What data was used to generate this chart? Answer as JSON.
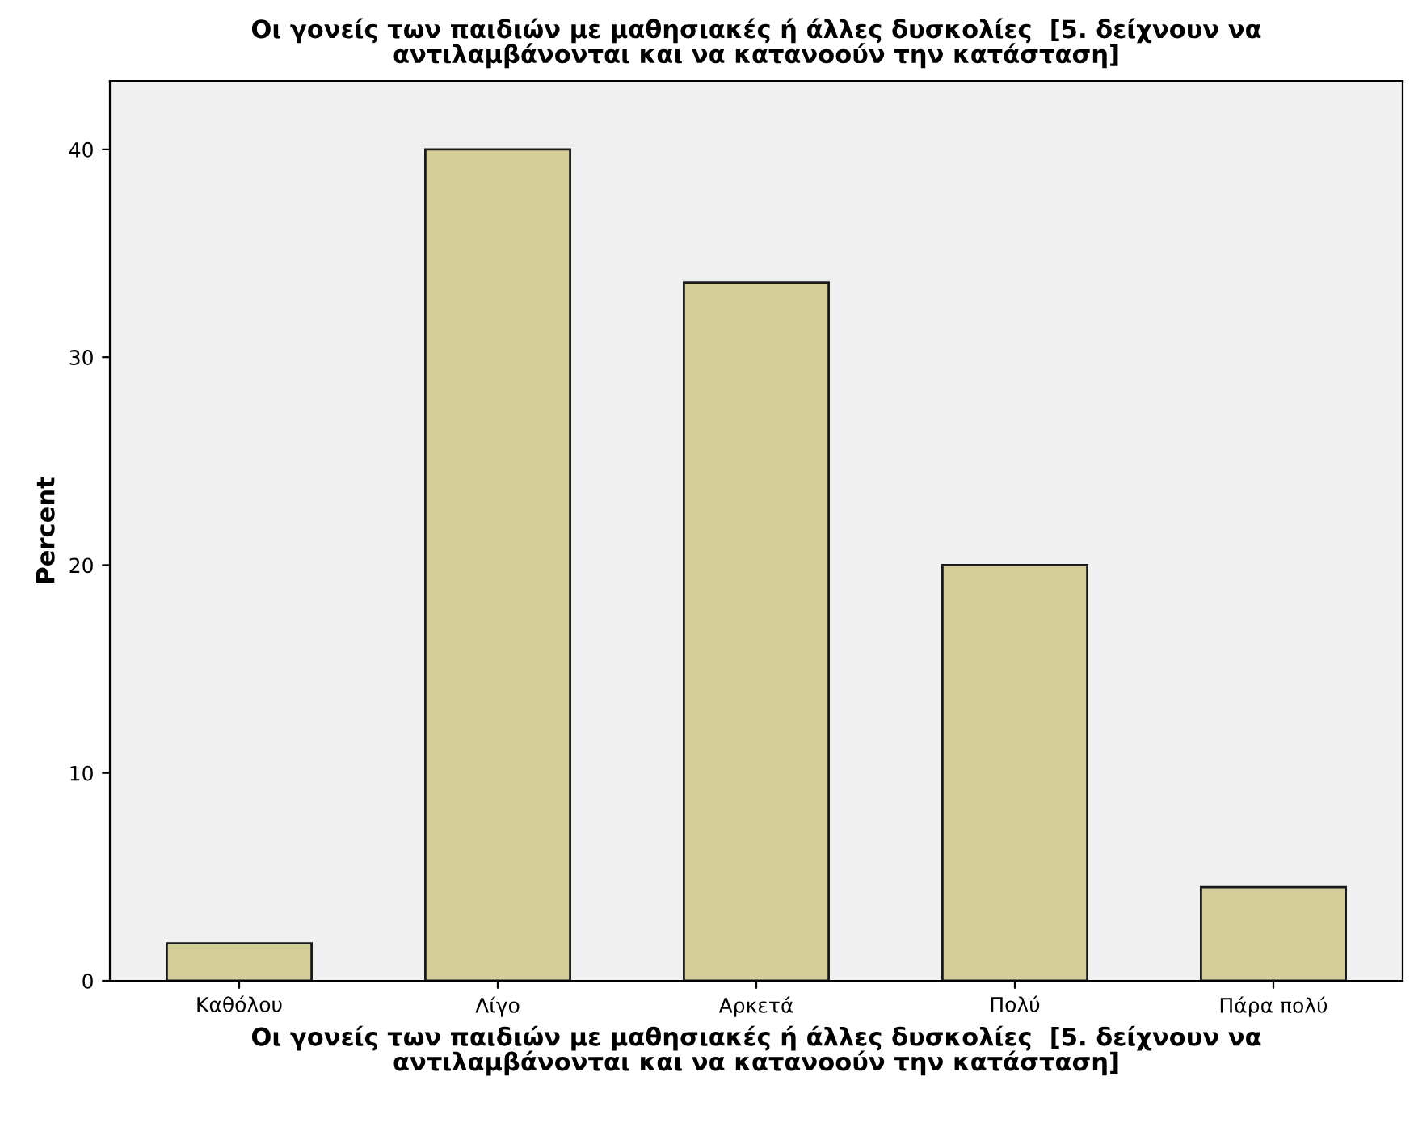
{
  "chart_data": {
    "type": "bar",
    "title": "Οι γονείς των παιδιών με μαθησιακές ή άλλες δυσκολίες  [5. δείχνουν να\nαντιλαμβάνονται και να κατανοούν την κατάσταση]",
    "xlabel": "Οι γονείς των παιδιών με μαθησιακές ή άλλες δυσκολίες  [5. δείχνουν να\nαντιλαμβάνονται και να κατανοούν την κατάσταση]",
    "ylabel": "Percent",
    "categories": [
      "Καθόλου",
      "Λίγο",
      "Αρκετά",
      "Πολύ",
      "Πάρα πολύ"
    ],
    "values": [
      1.8,
      40,
      33.6,
      20,
      4.5
    ],
    "color": "#d3ce98",
    "ylim": [
      0,
      43.3
    ],
    "yticks": [
      0,
      10,
      20,
      30,
      40
    ],
    "grid": false
  }
}
